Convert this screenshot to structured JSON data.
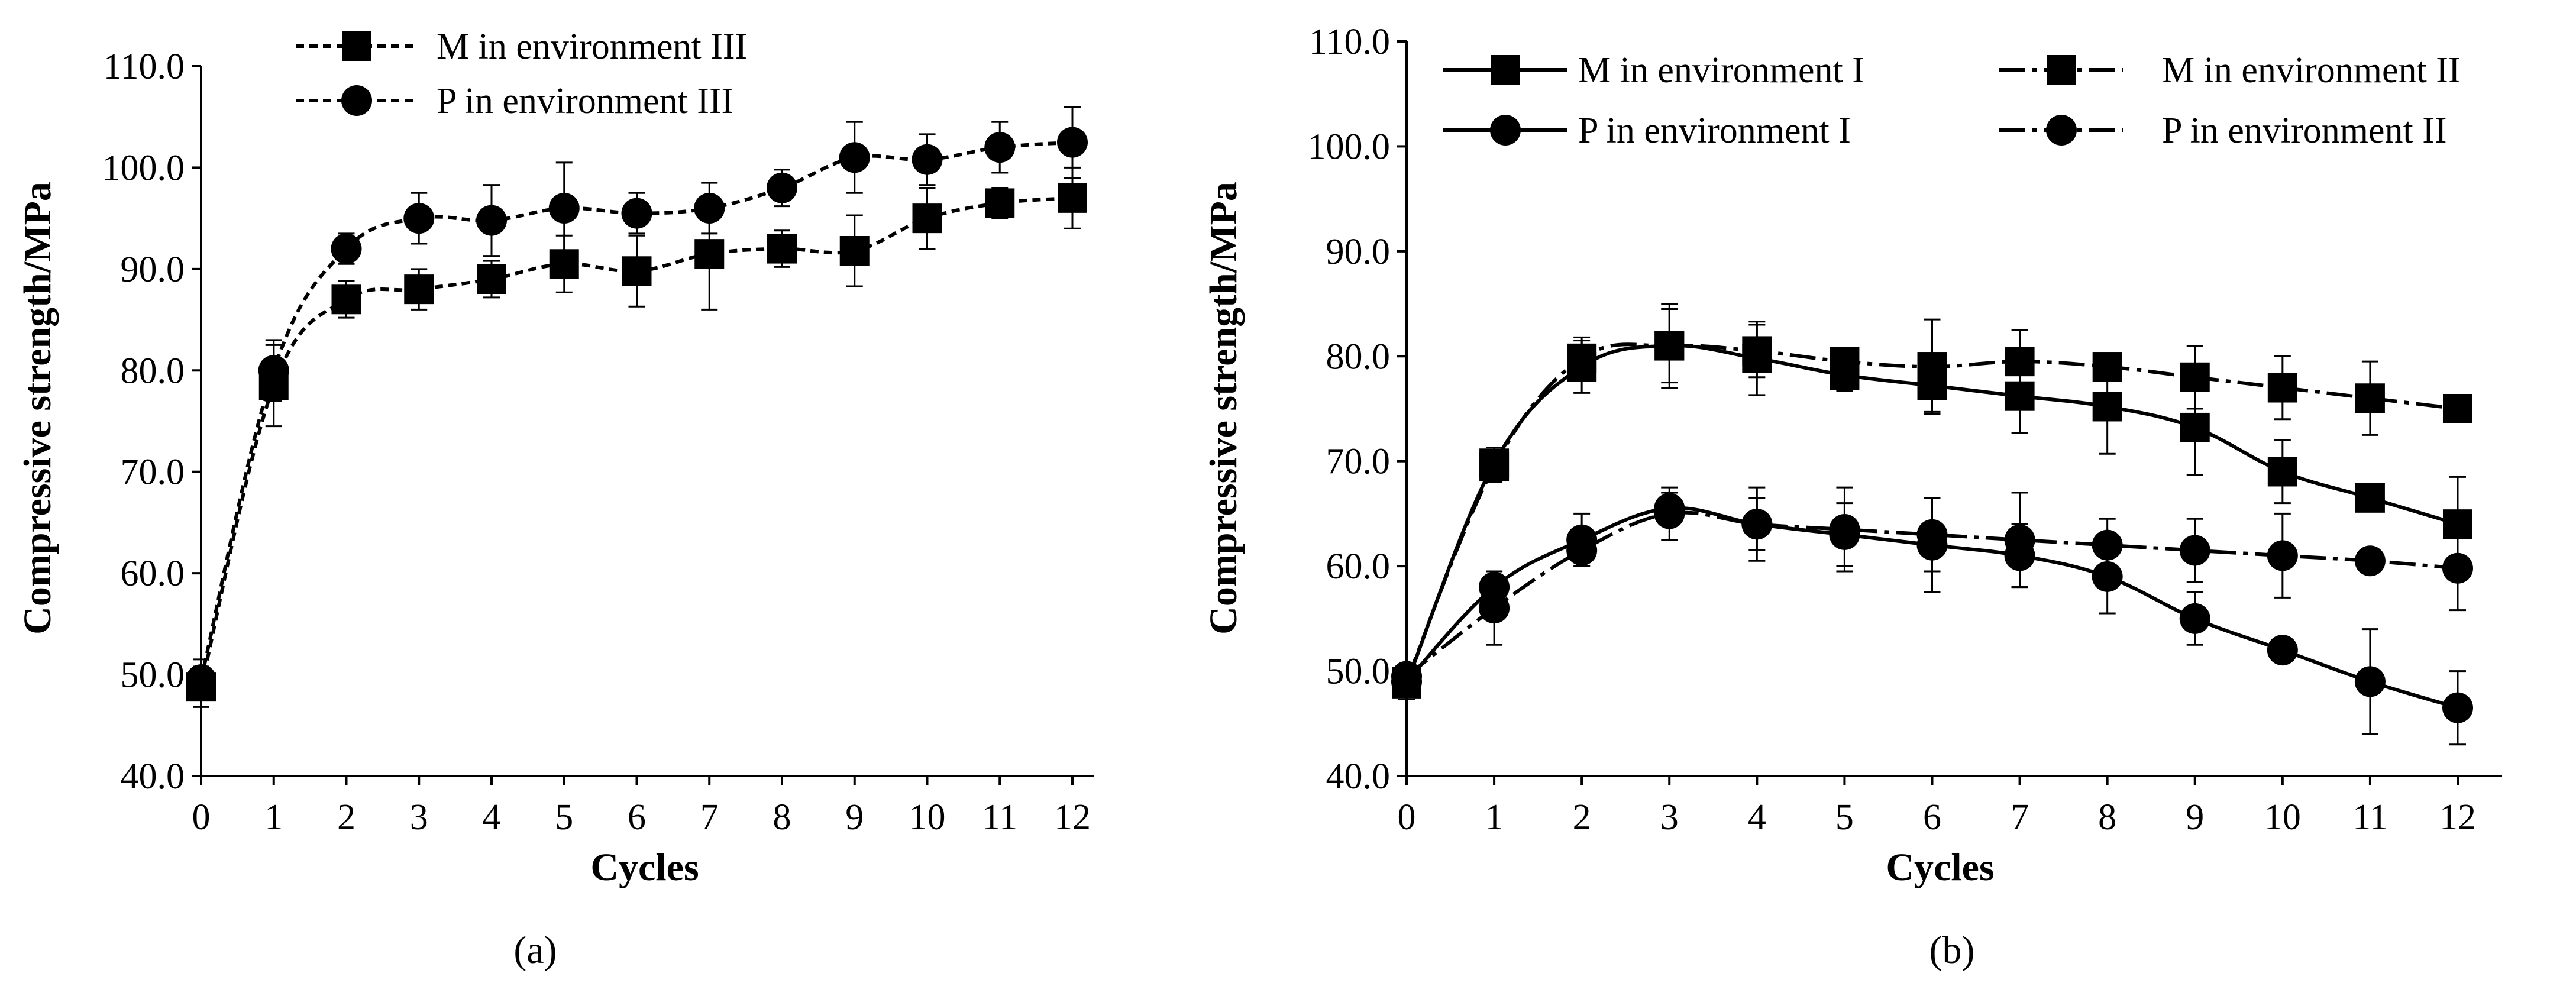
{
  "chart_data": [
    {
      "id": "a",
      "type": "line",
      "caption": "(a)",
      "xlabel": "Cycles",
      "ylabel": "Compressive strength/MPa",
      "x": [
        0,
        1,
        2,
        3,
        4,
        5,
        6,
        7,
        8,
        9,
        10,
        11,
        12
      ],
      "xlim": [
        0,
        12
      ],
      "ylim": [
        40,
        110
      ],
      "xticks": [
        "0",
        "1",
        "2",
        "3",
        "4",
        "5",
        "6",
        "7",
        "8",
        "9",
        "10",
        "11",
        "12"
      ],
      "yticks": [
        "40.0",
        "50.0",
        "60.0",
        "70.0",
        "80.0",
        "90.0",
        "100.0",
        "110.0"
      ],
      "grid": false,
      "legend_position": "top-left",
      "series": [
        {
          "name": "M in environment III",
          "marker": "square",
          "line": "dashed",
          "values": [
            48.8,
            78.5,
            87.0,
            88.0,
            89.0,
            90.5,
            89.8,
            91.5,
            92.0,
            91.8,
            95.0,
            96.5,
            97.0
          ],
          "errors": [
            2.0,
            4.0,
            1.8,
            2.0,
            1.8,
            2.8,
            3.5,
            5.5,
            1.8,
            3.5,
            3.0,
            1.5,
            3.0
          ]
        },
        {
          "name": "P in environment III",
          "marker": "circle",
          "line": "dashed",
          "values": [
            49.5,
            80.0,
            92.0,
            95.0,
            94.8,
            96.0,
            95.5,
            96.0,
            98.0,
            101.0,
            100.8,
            102.0,
            102.5
          ],
          "errors": [
            2.0,
            3.0,
            1.5,
            2.5,
            3.5,
            4.5,
            2.0,
            2.5,
            1.8,
            3.5,
            2.5,
            2.5,
            3.5
          ]
        }
      ]
    },
    {
      "id": "b",
      "type": "line",
      "caption": "(b)",
      "xlabel": "Cycles",
      "ylabel": "Compressive strength/MPa",
      "x": [
        0,
        1,
        2,
        3,
        4,
        5,
        6,
        7,
        8,
        9,
        10,
        11,
        12
      ],
      "xlim": [
        0,
        12
      ],
      "ylim": [
        40,
        110
      ],
      "xticks": [
        "0",
        "1",
        "2",
        "3",
        "4",
        "5",
        "6",
        "7",
        "8",
        "9",
        "10",
        "11",
        "12"
      ],
      "yticks": [
        "40.0",
        "50.0",
        "60.0",
        "70.0",
        "80.0",
        "90.0",
        "100.0",
        "110.0"
      ],
      "grid": false,
      "legend_position": "top",
      "series": [
        {
          "name": "M in environment I",
          "marker": "square",
          "line": "solid",
          "values": [
            48.8,
            69.8,
            79.0,
            81.0,
            79.8,
            78.2,
            77.2,
            76.2,
            75.2,
            73.2,
            69.0,
            66.5,
            64.0
          ],
          "errors": [
            1.5,
            1.5,
            2.5,
            3.5,
            3.5,
            1.5,
            2.5,
            3.5,
            4.5,
            4.5,
            3.0,
            1.0,
            4.5
          ]
        },
        {
          "name": "M in environment II",
          "marker": "square",
          "line": "dash-dot",
          "values": [
            49.0,
            69.5,
            79.8,
            81.0,
            80.5,
            79.5,
            79.0,
            79.5,
            79.0,
            78.0,
            77.0,
            76.0,
            75.0
          ],
          "errors": [
            1.5,
            1.5,
            2.0,
            4.0,
            2.5,
            1.0,
            4.5,
            3.0,
            1.0,
            3.0,
            3.0,
            3.5,
            0.5
          ]
        },
        {
          "name": "P in environment I",
          "marker": "circle",
          "line": "solid",
          "values": [
            49.0,
            58.0,
            62.5,
            65.5,
            64.0,
            63.0,
            62.0,
            61.0,
            59.0,
            55.0,
            52.0,
            49.0,
            46.5
          ],
          "errors": [
            1.0,
            1.5,
            2.5,
            1.5,
            2.5,
            3.0,
            4.5,
            3.0,
            3.5,
            2.5,
            0.5,
            5.0,
            3.5
          ]
        },
        {
          "name": "P in environment II",
          "marker": "circle",
          "line": "dash-dot",
          "values": [
            49.5,
            56.0,
            61.5,
            65.0,
            64.0,
            63.5,
            63.0,
            62.5,
            62.0,
            61.5,
            61.0,
            60.5,
            59.8
          ],
          "errors": [
            1.0,
            3.5,
            1.5,
            2.5,
            3.5,
            4.0,
            3.5,
            4.5,
            2.5,
            3.0,
            4.0,
            1.0,
            4.0
          ]
        }
      ]
    }
  ]
}
